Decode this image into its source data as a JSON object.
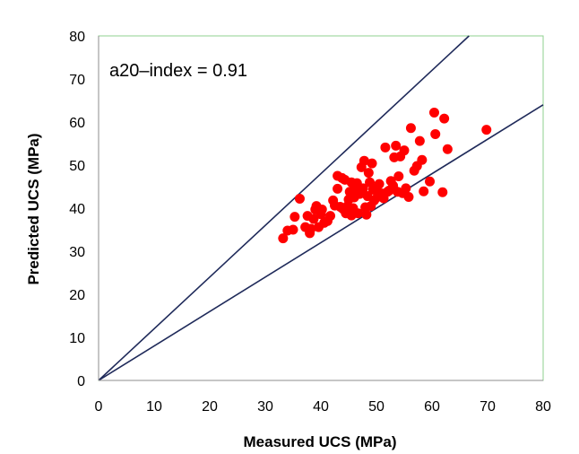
{
  "chart_data": {
    "type": "scatter",
    "xlabel": "Measured UCS (MPa)",
    "ylabel": "Predicted UCS (MPa)",
    "xlim": [
      0,
      80
    ],
    "ylim": [
      0,
      80
    ],
    "x_ticks": [
      "0",
      "10",
      "20",
      "30",
      "40",
      "50",
      "60",
      "70",
      "80"
    ],
    "y_ticks": [
      "0",
      "10",
      "20",
      "30",
      "40",
      "50",
      "60",
      "70",
      "80"
    ],
    "grid": false,
    "annotation": "a20–index = 0.91",
    "colors": {
      "points": "#ff0000",
      "lines": "#1f2a5a",
      "plot_border": "#8fd18f"
    },
    "reference_lines": [
      {
        "slope": 1.2,
        "intercept": 0
      },
      {
        "slope": 0.8,
        "intercept": 0
      }
    ],
    "series": [
      {
        "marker": "circle",
        "points": [
          [
            33.2,
            33.0
          ],
          [
            34.0,
            34.8
          ],
          [
            35.0,
            35.0
          ],
          [
            35.3,
            38.0
          ],
          [
            36.2,
            42.2
          ],
          [
            37.2,
            35.6
          ],
          [
            37.6,
            38.2
          ],
          [
            38.0,
            34.2
          ],
          [
            38.2,
            35.2
          ],
          [
            38.7,
            37.5
          ],
          [
            39.0,
            39.7
          ],
          [
            39.2,
            40.5
          ],
          [
            39.6,
            35.6
          ],
          [
            40.0,
            38.6
          ],
          [
            40.2,
            39.7
          ],
          [
            40.6,
            36.6
          ],
          [
            41.2,
            37.0
          ],
          [
            41.7,
            38.2
          ],
          [
            42.2,
            41.8
          ],
          [
            42.5,
            40.6
          ],
          [
            43.0,
            44.5
          ],
          [
            43.0,
            47.5
          ],
          [
            43.5,
            40.3
          ],
          [
            43.8,
            47.0
          ],
          [
            44.0,
            39.8
          ],
          [
            44.3,
            46.6
          ],
          [
            44.5,
            38.8
          ],
          [
            44.8,
            40.5
          ],
          [
            45.0,
            42.0
          ],
          [
            45.2,
            43.8
          ],
          [
            45.5,
            38.3
          ],
          [
            45.5,
            46.0
          ],
          [
            45.8,
            40.0
          ],
          [
            46.0,
            42.5
          ],
          [
            46.2,
            44.3
          ],
          [
            46.5,
            45.8
          ],
          [
            46.7,
            38.8
          ],
          [
            47.0,
            43.3
          ],
          [
            47.3,
            49.5
          ],
          [
            47.6,
            44.6
          ],
          [
            47.8,
            51.0
          ],
          [
            48.0,
            40.2
          ],
          [
            48.2,
            38.5
          ],
          [
            48.4,
            42.8
          ],
          [
            48.6,
            48.2
          ],
          [
            48.8,
            46.0
          ],
          [
            49.0,
            40.5
          ],
          [
            49.2,
            50.4
          ],
          [
            49.4,
            44.3
          ],
          [
            49.6,
            41.8
          ],
          [
            50.0,
            44.6
          ],
          [
            50.2,
            42.6
          ],
          [
            50.5,
            45.6
          ],
          [
            51.0,
            43.4
          ],
          [
            51.3,
            42.3
          ],
          [
            51.6,
            54.1
          ],
          [
            52.0,
            43.8
          ],
          [
            52.3,
            44.1
          ],
          [
            52.6,
            46.3
          ],
          [
            53.0,
            45.2
          ],
          [
            53.2,
            51.8
          ],
          [
            53.5,
            54.5
          ],
          [
            53.8,
            43.8
          ],
          [
            54.0,
            47.4
          ],
          [
            54.3,
            52.0
          ],
          [
            54.7,
            43.5
          ],
          [
            55.0,
            53.4
          ],
          [
            55.3,
            44.6
          ],
          [
            55.8,
            42.6
          ],
          [
            56.2,
            58.6
          ],
          [
            56.8,
            48.7
          ],
          [
            57.3,
            49.8
          ],
          [
            57.8,
            55.6
          ],
          [
            58.2,
            51.2
          ],
          [
            58.5,
            43.9
          ],
          [
            59.6,
            46.2
          ],
          [
            60.4,
            62.2
          ],
          [
            60.6,
            57.2
          ],
          [
            61.9,
            43.7
          ],
          [
            62.2,
            60.8
          ],
          [
            62.8,
            53.7
          ],
          [
            69.8,
            58.2
          ]
        ]
      }
    ]
  }
}
